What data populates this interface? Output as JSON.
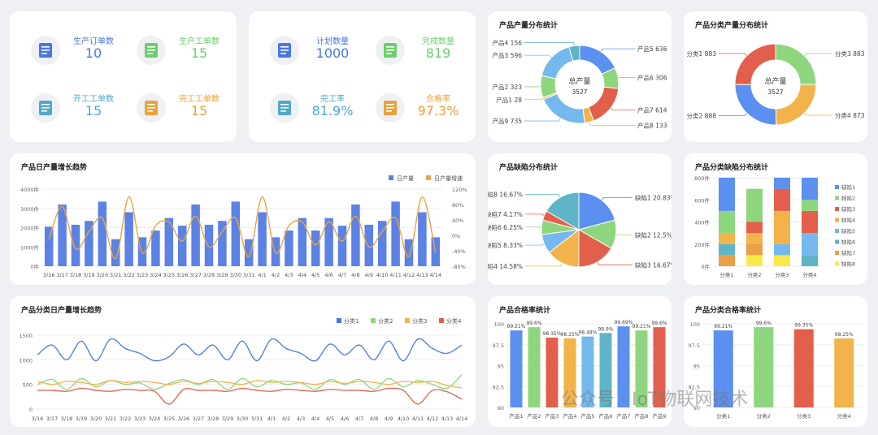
{
  "kpi_left": [
    {
      "label": "生产订单数",
      "value": "10",
      "color": "#4a77e0",
      "icon": "clipboard-icon"
    },
    {
      "label": "生产工单数",
      "value": "15",
      "color": "#6ccf6b",
      "icon": "document-icon"
    },
    {
      "label": "开工工单数",
      "value": "15",
      "color": "#4fa8c9",
      "icon": "list-icon"
    },
    {
      "label": "完工工单数",
      "value": "15",
      "color": "#e9a23b",
      "icon": "checklist-icon"
    }
  ],
  "kpi_right": [
    {
      "label": "计划数量",
      "value": "1000",
      "color": "#4a77e0",
      "icon": "plan-icon"
    },
    {
      "label": "完成数量",
      "value": "819",
      "color": "#6ccf6b",
      "icon": "done-icon"
    },
    {
      "label": "完工率",
      "value": "81.9%",
      "color": "#4fa8c9",
      "icon": "rate-icon"
    },
    {
      "label": "合格率",
      "value": "97.3%",
      "color": "#e9a23b",
      "icon": "quality-icon"
    }
  ],
  "colors": {
    "blue": "#5b8ff0",
    "green": "#8ed67d",
    "yellow": "#f2b34a",
    "red": "#e2604b",
    "lightblue": "#74b8ee",
    "teal": "#5fb4c6",
    "orange": "#eb9f46",
    "paleyellow": "#fbe84a"
  },
  "chart_data": [
    {
      "id": "product-output",
      "type": "pie",
      "title": "产品产量分布统计",
      "center_label": "总产量",
      "center_value": "3527",
      "slices": [
        {
          "label": "产品5",
          "value": 636,
          "color": "#5b8ff0"
        },
        {
          "label": "产品6",
          "value": 306,
          "color": "#8ed67d"
        },
        {
          "label": "产品7",
          "value": 614,
          "color": "#e2604b"
        },
        {
          "label": "产品8",
          "value": 133,
          "color": "#f2b34a"
        },
        {
          "label": "产品9",
          "value": 735,
          "color": "#74b8ee"
        },
        {
          "label": "产品1",
          "value": 28,
          "color": "#f2b34a"
        },
        {
          "label": "产品2",
          "value": 323,
          "color": "#8ed67d"
        },
        {
          "label": "产品3",
          "value": 596,
          "color": "#74b8ee"
        },
        {
          "label": "产品4",
          "value": 156,
          "color": "#5fb4c6"
        }
      ]
    },
    {
      "id": "category-output",
      "type": "pie",
      "title": "产品分类产量分布统计",
      "center_label": "总产量",
      "center_value": "3527",
      "slices": [
        {
          "label": "分类3",
          "value": 883,
          "color": "#8ed67d"
        },
        {
          "label": "分类4",
          "value": 873,
          "color": "#f2b34a"
        },
        {
          "label": "分类2",
          "value": 888,
          "color": "#5b8ff0"
        },
        {
          "label": "分类1",
          "value": 883,
          "color": "#e2604b"
        }
      ]
    },
    {
      "id": "daily-output",
      "type": "bar",
      "title": "产品日产量增长趋势",
      "legend": [
        "日产量",
        "日产量增速"
      ],
      "categories": [
        "3/16",
        "3/17",
        "3/18",
        "3/19",
        "3/20",
        "3/21",
        "3/22",
        "3/23",
        "3/24",
        "3/25",
        "3/26",
        "3/27",
        "3/28",
        "3/29",
        "3/30",
        "3/31",
        "4/1",
        "4/2",
        "4/3",
        "4/4",
        "4/5",
        "4/6",
        "4/7",
        "4/8",
        "4/9",
        "4/10",
        "4/11",
        "4/12",
        "4/13",
        "4/14"
      ],
      "values": [
        2050,
        3200,
        2150,
        2350,
        3350,
        1400,
        2800,
        1500,
        1850,
        2500,
        2100,
        3200,
        2150,
        2350,
        3350,
        1400,
        2800,
        1500,
        1850,
        2500,
        1850,
        2500,
        2100,
        3200,
        2150,
        2350,
        3350,
        1400,
        2800,
        1500
      ],
      "growth": [
        -10,
        75,
        -35,
        10,
        45,
        -60,
        100,
        -45,
        25,
        35,
        -15,
        50,
        -30,
        10,
        45,
        -55,
        100,
        -45,
        25,
        35,
        -25,
        35,
        -15,
        50,
        -30,
        10,
        45,
        -55,
        100,
        -45
      ],
      "yticks": [
        "0件",
        "1000件",
        "2000件",
        "3000件",
        "4000件"
      ],
      "y2ticks": [
        "-80%",
        "-40%",
        "0%",
        "40%",
        "80%",
        "120%"
      ],
      "ylim": [
        0,
        4000
      ],
      "y2lim": [
        -80,
        120
      ]
    },
    {
      "id": "category-daily",
      "type": "line",
      "title": "产品分类日产量增长趋势",
      "legend": [
        "分类1",
        "分类2",
        "分类3",
        "分类4"
      ],
      "categories": [
        "3/16",
        "3/17",
        "3/18",
        "3/19",
        "3/20",
        "3/21",
        "3/22",
        "3/23",
        "3/24",
        "3/25",
        "3/26",
        "3/27",
        "3/28",
        "3/29",
        "3/30",
        "3/31",
        "4/1",
        "4/2",
        "4/3",
        "4/4",
        "4/5",
        "4/6",
        "4/7",
        "4/8",
        "4/9",
        "4/10",
        "4/11",
        "4/12",
        "4/13",
        "4/14"
      ],
      "yticks": [
        "0",
        "500",
        "1000",
        "1500"
      ],
      "ylim": [
        0,
        1500
      ],
      "series": [
        {
          "name": "分类1",
          "color": "#4a77e0",
          "values": [
            1100,
            1300,
            1000,
            1380,
            980,
            1420,
            1230,
            1130,
            980,
            1060,
            1320,
            1100,
            1300,
            1000,
            1380,
            980,
            1420,
            1230,
            1130,
            980,
            1320,
            1100,
            1300,
            1000,
            1380,
            980,
            1420,
            1230,
            1130,
            1300
          ]
        },
        {
          "name": "分类2",
          "color": "#8ed67d",
          "values": [
            500,
            600,
            400,
            620,
            450,
            580,
            500,
            530,
            400,
            520,
            600,
            500,
            600,
            400,
            620,
            450,
            580,
            500,
            530,
            400,
            600,
            500,
            600,
            400,
            620,
            450,
            580,
            500,
            420,
            700
          ]
        },
        {
          "name": "分类3",
          "color": "#f2b34a",
          "values": [
            560,
            500,
            560,
            540,
            500,
            580,
            540,
            560,
            540,
            500,
            560,
            520,
            560,
            540,
            500,
            580,
            540,
            560,
            540,
            500,
            560,
            520,
            560,
            540,
            500,
            560,
            540,
            560,
            480,
            430
          ]
        },
        {
          "name": "分类4",
          "color": "#e2604b",
          "values": [
            380,
            380,
            360,
            420,
            380,
            360,
            400,
            380,
            360,
            100,
            400,
            380,
            380,
            360,
            420,
            380,
            360,
            400,
            380,
            360,
            400,
            380,
            380,
            360,
            420,
            380,
            100,
            380,
            350,
            200
          ]
        }
      ]
    },
    {
      "id": "defect",
      "type": "pie",
      "title": "产品缺陷分布统计",
      "slices": [
        {
          "label": "缺陷1",
          "pct": "20.83%",
          "value": 20.83,
          "color": "#5b8ff0"
        },
        {
          "label": "缺陷2",
          "pct": "12.5%",
          "value": 12.5,
          "color": "#8ed67d"
        },
        {
          "label": "缺陷3",
          "pct": "16.67%",
          "value": 16.67,
          "color": "#e2604b"
        },
        {
          "label": "缺陷4",
          "pct": "14.58%",
          "value": 14.58,
          "color": "#f2b34a"
        },
        {
          "label": "缺陷5",
          "pct": "8.33%",
          "value": 8.33,
          "color": "#74b8ee"
        },
        {
          "label": "缺陷6",
          "pct": "6.25%",
          "value": 6.25,
          "color": "#8ed67d"
        },
        {
          "label": "缺陷7",
          "pct": "4.17%",
          "value": 4.17,
          "color": "#e2604b"
        },
        {
          "label": "缺陷8",
          "pct": "16.67%",
          "value": 16.67,
          "color": "#5fb4c6"
        }
      ]
    },
    {
      "id": "category-defect",
      "type": "bar",
      "title": "产品分类缺陷分布统计",
      "categories": [
        "分类1",
        "分类2",
        "分类3",
        "分类4"
      ],
      "yticks": [
        "0件",
        "200件",
        "400件",
        "600件",
        "800件"
      ],
      "ylim": [
        0,
        800
      ],
      "legend": [
        "缺陷1",
        "缺陷2",
        "缺陷3",
        "缺陷4",
        "缺陷5",
        "缺陷6",
        "缺陷7",
        "缺陷8"
      ],
      "series": [
        {
          "name": "缺陷8",
          "color": "#fbe84a",
          "values": [
            0,
            100,
            100,
            0
          ]
        },
        {
          "name": "缺陷7",
          "color": "#eb9f46",
          "values": [
            100,
            100,
            0,
            0
          ]
        },
        {
          "name": "缺陷6",
          "color": "#5fb4c6",
          "values": [
            100,
            0,
            0,
            100
          ]
        },
        {
          "name": "缺陷5",
          "color": "#74b8ee",
          "values": [
            0,
            0,
            100,
            200
          ]
        },
        {
          "name": "缺陷4",
          "color": "#f2b34a",
          "values": [
            100,
            100,
            300,
            0
          ]
        },
        {
          "name": "缺陷3",
          "color": "#e2604b",
          "values": [
            0,
            100,
            200,
            200
          ]
        },
        {
          "name": "缺陷2",
          "color": "#8ed67d",
          "values": [
            200,
            300,
            0,
            100
          ]
        },
        {
          "name": "缺陷1",
          "color": "#5b8ff0",
          "values": [
            300,
            0,
            100,
            200
          ]
        }
      ]
    },
    {
      "id": "product-pass",
      "type": "bar",
      "title": "产品合格率统计",
      "categories": [
        "产品1",
        "产品2",
        "产品3",
        "产品4",
        "产品5",
        "产品6",
        "产品7",
        "产品8",
        "产品9"
      ],
      "values": [
        99.21,
        99.6,
        98.35,
        98.25,
        98.48,
        98.9,
        99.69,
        99.21,
        99.6
      ],
      "labels": [
        "99.21%",
        "99.6%",
        "98.35%",
        "98.25%",
        "98.48%",
        "98.9%",
        "99.69%",
        "99.21%",
        "99.6%"
      ],
      "colors": [
        "#5b8ff0",
        "#8ed67d",
        "#e2604b",
        "#f2b34a",
        "#74b8ee",
        "#5fb4c6",
        "#5b8ff0",
        "#8ed67d",
        "#e2604b"
      ],
      "yticks": [
        "90",
        "92.5",
        "95",
        "97.5",
        "100"
      ],
      "ylim": [
        90,
        100
      ]
    },
    {
      "id": "category-pass",
      "type": "bar",
      "title": "产品分类合格率统计",
      "categories": [
        "分类1",
        "分类2",
        "分类3",
        "分类4"
      ],
      "values": [
        99.21,
        99.6,
        99.35,
        98.25
      ],
      "labels": [
        "99.21%",
        "99.6%",
        "99.35%",
        "98.25%"
      ],
      "colors": [
        "#5b8ff0",
        "#8ed67d",
        "#e2604b",
        "#f2b34a"
      ],
      "yticks": [
        "90",
        "92.5",
        "95",
        "97.5",
        "100"
      ],
      "ylim": [
        90,
        100
      ]
    }
  ],
  "watermark": "公众号 · IoT物联网技术"
}
